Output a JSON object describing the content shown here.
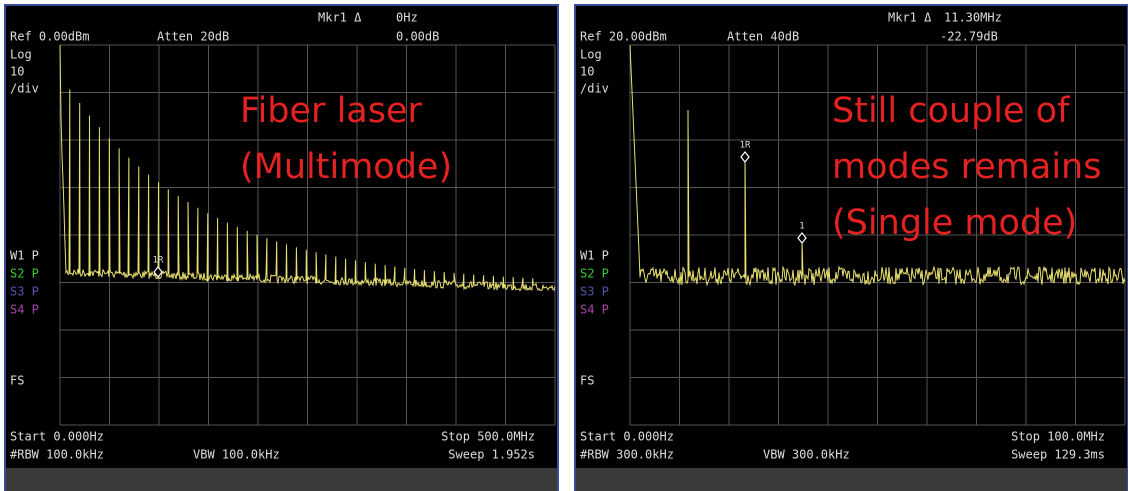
{
  "panels": [
    {
      "marker": "Mkr1 Δ",
      "marker_freq": "0Hz",
      "ref": "Ref 0.00dBm",
      "atten": "Atten 20dB",
      "marker_level": "0.00dB",
      "scale": [
        "Log",
        "10",
        "/div"
      ],
      "traces": [
        "W1 P",
        "S2 P",
        "S3 P",
        "S4 P"
      ],
      "fs": "FS",
      "start": "Start 0.000Hz",
      "stop": "Stop 500.0MHz",
      "rbw": "#RBW 100.0kHz",
      "vbw": "VBW 100.0kHz",
      "sweep": "Sweep 1.952s",
      "annotation": [
        "Fiber laser",
        "(Multimode)"
      ],
      "marker_labels": [
        "1R"
      ]
    },
    {
      "marker": "Mkr1 Δ",
      "marker_freq": "11.30MHz",
      "ref": "Ref 20.00dBm",
      "atten": "Atten 40dB",
      "marker_level": "-22.79dB",
      "scale": [
        "Log",
        "10",
        "/div"
      ],
      "traces": [
        "W1 P",
        "S2 P",
        "S3 P",
        "S4 P"
      ],
      "fs": "FS",
      "start": "Start 0.000Hz",
      "stop": "Stop 100.0MHz",
      "rbw": "#RBW 300.0kHz",
      "vbw": "VBW 300.0kHz",
      "sweep": "Sweep 129.3ms",
      "annotation": [
        "Still couple of",
        "modes remains",
        "(Single mode)"
      ],
      "marker_labels": [
        "1R",
        "1"
      ]
    }
  ]
}
